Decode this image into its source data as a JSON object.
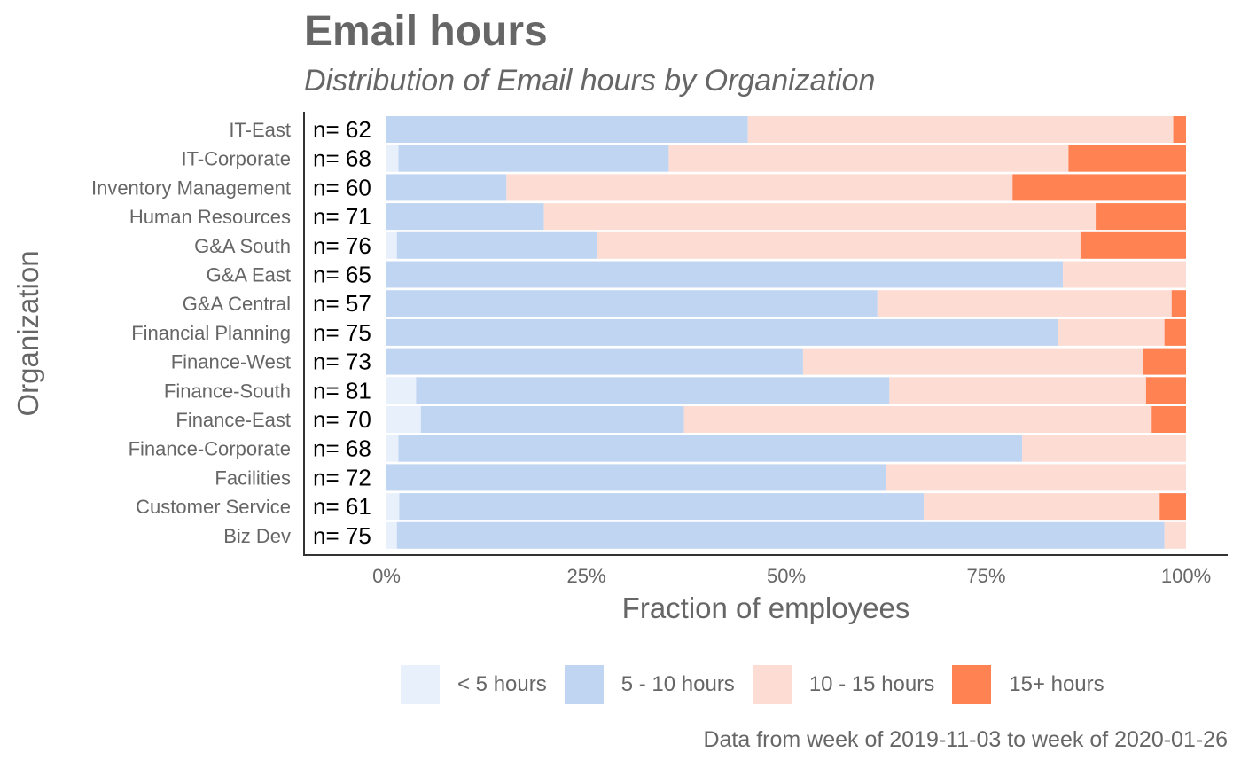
{
  "chart_data": {
    "type": "bar",
    "orientation": "horizontal",
    "stacked": "fill",
    "title": "Email hours",
    "subtitle": "Distribution of Email hours by Organization",
    "xlabel": "Fraction of employees",
    "ylabel": "Organization",
    "caption": "Data from week of 2019-11-03 to week of 2020-01-26",
    "xlim": [
      0,
      1
    ],
    "xticks": [
      "0%",
      "25%",
      "50%",
      "75%",
      "100%"
    ],
    "xtick_values": [
      0,
      0.25,
      0.5,
      0.75,
      1
    ],
    "legend_position": "bottom",
    "categories": [
      "IT-East",
      "IT-Corporate",
      "Inventory Management",
      "Human Resources",
      "G&A South",
      "G&A East",
      "G&A Central",
      "Financial Planning",
      "Finance-West",
      "Finance-South",
      "Finance-East",
      "Finance-Corporate",
      "Facilities",
      "Customer Service",
      "Biz Dev"
    ],
    "n_labels": [
      "n= 62",
      "n= 68",
      "n= 60",
      "n= 71",
      "n= 76",
      "n= 65",
      "n= 57",
      "n= 75",
      "n= 73",
      "n= 81",
      "n= 70",
      "n= 68",
      "n= 72",
      "n= 61",
      "n= 75"
    ],
    "series": [
      {
        "name": "< 5 hours",
        "color": "#E8F0FC",
        "values": [
          0,
          0.015,
          0,
          0,
          0.013,
          0,
          0,
          0,
          0,
          0.037,
          0.043,
          0.015,
          0,
          0.016,
          0.013
        ]
      },
      {
        "name": "5 - 10 hours",
        "color": "#C0D5F2",
        "values": [
          0.452,
          0.338,
          0.15,
          0.197,
          0.25,
          0.846,
          0.614,
          0.84,
          0.521,
          0.592,
          0.329,
          0.78,
          0.625,
          0.656,
          0.96
        ]
      },
      {
        "name": "10 - 15 hours",
        "color": "#FDDCD3",
        "values": [
          0.532,
          0.5,
          0.633,
          0.69,
          0.605,
          0.154,
          0.368,
          0.133,
          0.425,
          0.321,
          0.585,
          0.205,
          0.375,
          0.295,
          0.027
        ]
      },
      {
        "name": "15+ hours",
        "color": "#FF8352",
        "values": [
          0.016,
          0.147,
          0.217,
          0.113,
          0.132,
          0,
          0.018,
          0.027,
          0.054,
          0.05,
          0.043,
          0,
          0,
          0.033,
          0
        ]
      }
    ]
  }
}
